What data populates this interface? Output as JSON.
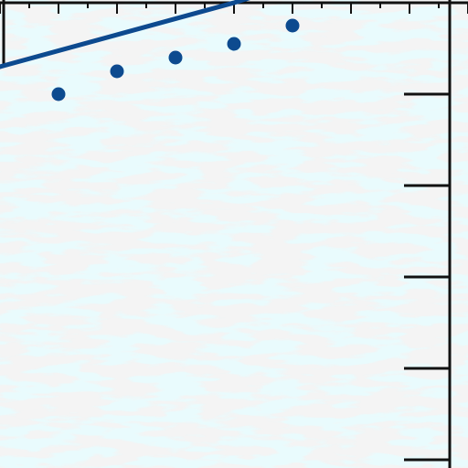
{
  "chart_data": {
    "type": "scatter",
    "xlabel": "",
    "ylabel": "",
    "title": "",
    "grid": false,
    "legend": "none",
    "xlim": [
      -2.0,
      8.0
    ],
    "ylim": [
      -4.0,
      1.25
    ],
    "x_ticks": [
      -2.0,
      -1.5,
      -1.0,
      -0.5,
      0.0,
      0.5,
      1.0,
      1.5,
      2.0,
      2.5,
      3.0,
      3.5,
      4.0,
      4.5,
      5.0,
      5.5,
      6.0,
      6.5,
      7.0,
      7.5,
      8.0
    ],
    "y_ticks": [
      -4.0,
      -3.5,
      -3.0,
      -2.5,
      -2.0,
      -1.5,
      -1.0,
      -0.5,
      0.0,
      0.5,
      1.0
    ],
    "series": [
      {
        "kind": "points",
        "values": [
          {
            "x": 1.0,
            "y": 0.0
          },
          {
            "x": 2.0,
            "y": 0.25
          },
          {
            "x": 3.0,
            "y": 0.4
          },
          {
            "x": 4.0,
            "y": 0.55
          },
          {
            "x": 5.0,
            "y": 0.75
          }
        ]
      },
      {
        "kind": "line",
        "values": [
          {
            "x": 0.0,
            "y": 0.3
          },
          {
            "x": 4.0,
            "y": 1.0
          },
          {
            "x": 5.0,
            "y": 1.2
          }
        ]
      }
    ],
    "colors": {
      "background": "#e9fbfd",
      "texture": "#e6e6e6",
      "series": "#0d4a8f",
      "axis": "#111111"
    }
  }
}
